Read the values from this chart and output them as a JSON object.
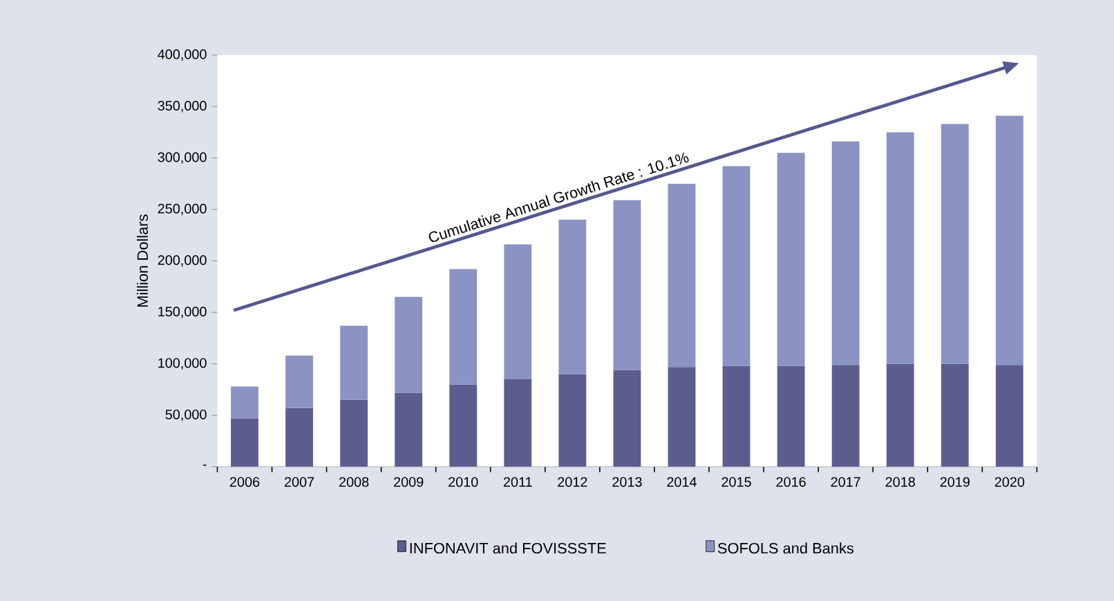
{
  "chart_data": {
    "type": "bar",
    "stacked": true,
    "ylabel": "Million Dollars",
    "categories": [
      "2006",
      "2007",
      "2008",
      "2009",
      "2010",
      "2011",
      "2012",
      "2013",
      "2014",
      "2015",
      "2016",
      "2017",
      "2018",
      "2019",
      "2020"
    ],
    "series": [
      {
        "name": "INFONAVIT and FOVISSSTE",
        "color": "#5b5d8e",
        "values": [
          47000,
          57000,
          65000,
          72000,
          80000,
          85000,
          90000,
          94000,
          97000,
          98000,
          98000,
          99000,
          100000,
          100000,
          99000
        ]
      },
      {
        "name": "SOFOLS and Banks",
        "color": "#8a93c3",
        "values": [
          31000,
          51000,
          72000,
          93000,
          112000,
          131000,
          150000,
          165000,
          178000,
          194000,
          207000,
          217000,
          225000,
          233000,
          242000
        ]
      }
    ],
    "annotations": [
      "Cumulative Annual Growth Rate : 10.1%"
    ],
    "ylim": [
      0,
      400000
    ],
    "yticks": [
      {
        "value": 0,
        "label": "-"
      },
      {
        "value": 50000,
        "label": "50,000"
      },
      {
        "value": 100000,
        "label": "100,000"
      },
      {
        "value": 150000,
        "label": "150,000"
      },
      {
        "value": 200000,
        "label": "200,000"
      },
      {
        "value": 250000,
        "label": "250,000"
      },
      {
        "value": 300000,
        "label": "300,000"
      },
      {
        "value": 350000,
        "label": "350,000"
      },
      {
        "value": 400000,
        "label": "400,000"
      }
    ],
    "grid": false,
    "legend": "bottom"
  }
}
